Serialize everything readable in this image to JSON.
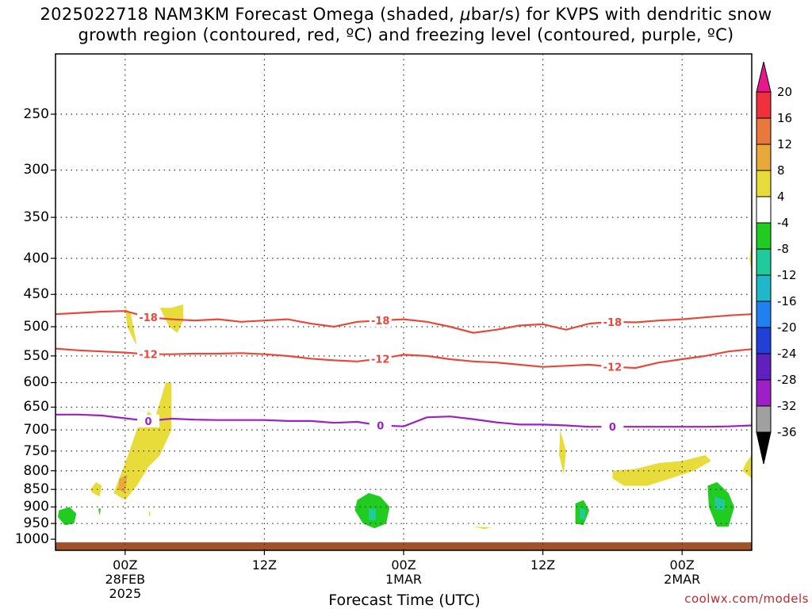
{
  "header": {
    "line1_pre": "2025022718 NAM3KM Forecast Omega (shaded, ",
    "mu": "μ",
    "line1_post": "bar/s) for KVPS with dendritic snow",
    "line2": "growth region (contoured, red, ºC) and freezing level (contoured, purple, ºC)"
  },
  "chart_data": {
    "type": "heatmap",
    "x_axis": {
      "title": "Forecast Time (UTC)",
      "ticks": [
        {
          "label": "00Z",
          "sub1": "28FEB",
          "sub2": "2025",
          "hour": 6
        },
        {
          "label": "12Z",
          "sub1": "",
          "sub2": "",
          "hour": 18
        },
        {
          "label": "00Z",
          "sub1": "1MAR",
          "sub2": "",
          "hour": 30
        },
        {
          "label": "12Z",
          "sub1": "",
          "sub2": "",
          "hour": 42
        },
        {
          "label": "00Z",
          "sub1": "2MAR",
          "sub2": "",
          "hour": 54
        }
      ],
      "range_hours": [
        0,
        60
      ]
    },
    "y_axis": {
      "ticks": [
        250,
        300,
        350,
        400,
        450,
        500,
        550,
        600,
        650,
        700,
        750,
        800,
        850,
        900,
        950,
        1000
      ],
      "range_hpa": [
        200,
        1000
      ],
      "scale": "log-pressure, inverted"
    },
    "contours": [
      {
        "label": "-18",
        "color": "#e8483a",
        "hours": [
          0,
          2,
          4,
          6,
          8,
          10,
          12,
          14,
          16,
          18,
          20,
          22,
          24,
          26,
          28,
          30,
          32,
          34,
          36,
          38,
          40,
          42,
          44,
          46,
          48,
          50,
          52,
          54,
          56,
          58,
          60
        ],
        "pressure": [
          480,
          478,
          476,
          475,
          485,
          488,
          490,
          488,
          492,
          490,
          488,
          495,
          500,
          492,
          490,
          488,
          492,
          500,
          510,
          505,
          498,
          496,
          505,
          495,
          492,
          493,
          490,
          488,
          485,
          482,
          480
        ]
      },
      {
        "label": "-12",
        "color": "#e8483a",
        "hours": [
          0,
          2,
          4,
          6,
          8,
          10,
          12,
          14,
          16,
          18,
          20,
          22,
          24,
          26,
          28,
          30,
          32,
          34,
          36,
          38,
          40,
          42,
          44,
          46,
          48,
          50,
          52,
          54,
          56,
          58,
          60
        ],
        "pressure": [
          537,
          540,
          542,
          544,
          547,
          547,
          546,
          546,
          545,
          547,
          550,
          555,
          558,
          560,
          555,
          548,
          550,
          556,
          560,
          562,
          566,
          570,
          568,
          566,
          570,
          572,
          562,
          556,
          550,
          542,
          538
        ]
      },
      {
        "label": "0",
        "color": "#9d1fc6",
        "hours": [
          0,
          2,
          4,
          6,
          8,
          10,
          12,
          14,
          16,
          18,
          20,
          22,
          24,
          26,
          28,
          30,
          32,
          34,
          36,
          38,
          40,
          42,
          44,
          46,
          48,
          50,
          52,
          54,
          56,
          58,
          60
        ],
        "pressure": [
          666,
          666,
          668,
          674,
          680,
          675,
          677,
          678,
          678,
          678,
          680,
          680,
          684,
          682,
          690,
          692,
          672,
          670,
          676,
          683,
          688,
          688,
          690,
          693,
          693,
          693,
          693,
          693,
          693,
          692,
          690
        ]
      }
    ],
    "shaded": [
      {
        "level": "4 to 8",
        "color": "#e8dc3a",
        "regions": [
          {
            "hours": [
              3.0,
              3.5,
              4.0,
              3.8,
              3.2
            ],
            "pressure": [
              850,
              830,
              840,
              870,
              860
            ]
          },
          {
            "hours": [
              6.0,
              7.0,
              8.0,
              9.0,
              9.5,
              9.0,
              8.0,
              7.0,
              6.5,
              6.0,
              5.5,
              5.0
            ],
            "pressure": [
              880,
              840,
              790,
              760,
              720,
              680,
              660,
              700,
              740,
              780,
              820,
              860
            ]
          },
          {
            "hours": [
              7.0,
              8.0,
              8.5,
              9.5,
              10.0,
              10.0,
              9.0,
              8.0
            ],
            "pressure": [
              800,
              720,
              680,
              600,
              600,
              700,
              760,
              790
            ]
          },
          {
            "hours": [
              6.0,
              6.5,
              7.0,
              6.8,
              6.2
            ],
            "pressure": [
              470,
              480,
              530,
              525,
              500
            ]
          },
          {
            "hours": [
              9.0,
              10.0,
              11.0,
              11.0,
              10.5,
              9.8
            ],
            "pressure": [
              470,
              470,
              465,
              490,
              510,
              500
            ]
          },
          {
            "hours": [
              43.5,
              44.0,
              43.8,
              43.4
            ],
            "pressure": [
              700,
              750,
              810,
              760
            ]
          },
          {
            "hours": [
              48.0,
              50.0,
              52.0,
              54.0,
              56.0,
              56.5,
              55.0,
              53.0,
              51.0,
              49.0,
              48.0
            ],
            "pressure": [
              800,
              795,
              780,
              775,
              760,
              775,
              800,
              820,
              840,
              840,
              820
            ]
          },
          {
            "hours": [
              59.5,
              60.0,
              60.0,
              59.2
            ],
            "pressure": [
              780,
              760,
              820,
              800
            ]
          },
          {
            "hours": [
              59.8,
              60.0,
              60.0
            ],
            "pressure": [
              400,
              380,
              420
            ]
          },
          {
            "hours": [
              36.0,
              37.5,
              37.0
            ],
            "pressure": [
              960,
              962,
              968
            ]
          },
          {
            "hours": [
              8.0,
              8.2,
              8.1
            ],
            "pressure": [
              910,
              920,
              930
            ]
          }
        ]
      },
      {
        "level": "8 to 12",
        "color": "#e8a93a",
        "regions": [
          {
            "hours": [
              5.5,
              6.2,
              6.0,
              5.4
            ],
            "pressure": [
              820,
              810,
              860,
              850
            ]
          }
        ]
      },
      {
        "level": "-8 to -4",
        "color": "#1fcc1f",
        "regions": [
          {
            "hours": [
              0.3,
              1.2,
              1.8,
              1.6,
              0.8,
              0.2
            ],
            "pressure": [
              910,
              900,
              920,
              950,
              955,
              930
            ]
          },
          {
            "hours": [
              26.0,
              27.0,
              28.0,
              28.8,
              28.5,
              27.5,
              26.5,
              25.8
            ],
            "pressure": [
              880,
              860,
              870,
              900,
              950,
              965,
              950,
              910
            ]
          },
          {
            "hours": [
              44.8,
              45.5,
              46.0,
              45.5,
              44.8
            ],
            "pressure": [
              890,
              880,
              910,
              955,
              950
            ]
          },
          {
            "hours": [
              56.2,
              57.0,
              58.0,
              58.5,
              58.0,
              57.0,
              56.3
            ],
            "pressure": [
              840,
              830,
              860,
              900,
              960,
              960,
              900
            ]
          },
          {
            "hours": [
              3.7,
              3.9,
              3.8
            ],
            "pressure": [
              905,
              905,
              925
            ]
          }
        ]
      },
      {
        "level": "-12 to -8",
        "color": "#1fcc99",
        "regions": [
          {
            "hours": [
              27.0,
              27.6,
              27.6,
              27.0
            ],
            "pressure": [
              905,
              905,
              940,
              940
            ]
          },
          {
            "hours": [
              45.2,
              45.7,
              45.6,
              45.2
            ],
            "pressure": [
              900,
              910,
              940,
              935
            ]
          },
          {
            "hours": [
              56.8,
              57.7,
              57.6,
              56.8
            ],
            "pressure": [
              870,
              880,
              910,
              905
            ]
          }
        ]
      }
    ],
    "terrain": {
      "color": "#a0522d",
      "pressure_top": 1010
    },
    "colorbar": {
      "labels": [
        "20",
        "16",
        "12",
        "8",
        "4",
        "-4",
        "-8",
        "-12",
        "-16",
        "-20",
        "-24",
        "-28",
        "-32",
        "-36"
      ],
      "colors": [
        "#e8188c",
        "#f0303c",
        "#e8783c",
        "#e8a93a",
        "#e8dc3a",
        "#ffffff",
        "#1fcc1f",
        "#1fcc99",
        "#20b8c8",
        "#2080f0",
        "#2040d8",
        "#6020c0",
        "#9d1fc6",
        "#a0a0a0",
        "#000000"
      ]
    }
  },
  "credit": "coolwx.com/models"
}
